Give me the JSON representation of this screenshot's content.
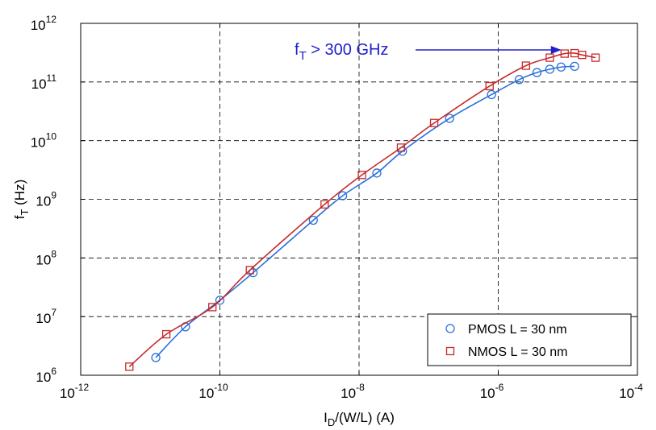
{
  "chart_data": {
    "type": "scatter",
    "title": "",
    "xlabel": {
      "main": "I",
      "sub": "D",
      "rest": "/(W/L) (A)"
    },
    "ylabel": {
      "main": "f",
      "sub": "T",
      "rest": " (Hz)"
    },
    "x_scale": "log",
    "y_scale": "log",
    "xlim": [
      1e-12,
      0.0001
    ],
    "ylim": [
      1000000.0,
      1000000000000.0
    ],
    "x_ticks": [
      {
        "base": "10",
        "exp": "-12",
        "value": 1e-12
      },
      {
        "base": "10",
        "exp": "-10",
        "value": 1e-10
      },
      {
        "base": "10",
        "exp": "-8",
        "value": 1e-08
      },
      {
        "base": "10",
        "exp": "-6",
        "value": 1e-06
      },
      {
        "base": "10",
        "exp": "-4",
        "value": 0.0001
      }
    ],
    "y_ticks": [
      {
        "base": "10",
        "exp": "6",
        "value": 1000000.0
      },
      {
        "base": "10",
        "exp": "7",
        "value": 10000000.0
      },
      {
        "base": "10",
        "exp": "8",
        "value": 100000000.0
      },
      {
        "base": "10",
        "exp": "9",
        "value": 1000000000.0
      },
      {
        "base": "10",
        "exp": "10",
        "value": 10000000000.0
      },
      {
        "base": "10",
        "exp": "11",
        "value": 100000000000.0
      },
      {
        "base": "10",
        "exp": "12",
        "value": 1000000000000.0
      }
    ],
    "grid": true,
    "legend_position": "bottom-right",
    "series": [
      {
        "name": "PMOS L = 30 nm",
        "marker": "circle",
        "color": "#2a6fdb",
        "points": [
          [
            1.2e-11,
            2000000.0
          ],
          [
            3.2e-11,
            6700000.0
          ],
          [
            1e-10,
            19000000.0
          ],
          [
            3e-10,
            56000000.0
          ],
          [
            2.2e-09,
            440000000.0
          ],
          [
            5.8e-09,
            1150000000.0
          ],
          [
            1.8e-08,
            2800000000.0
          ],
          [
            4.2e-08,
            6600000000.0
          ],
          [
            2e-07,
            24000000000.0
          ],
          [
            8e-07,
            61000000000.0
          ],
          [
            2e-06,
            110000000000.0
          ],
          [
            3.6e-06,
            145000000000.0
          ],
          [
            5.5e-06,
            165000000000.0
          ],
          [
            8e-06,
            180000000000.0
          ],
          [
            1.25e-05,
            185000000000.0
          ]
        ]
      },
      {
        "name": "NMOS L = 30 nm",
        "marker": "square",
        "color": "#c62a2a",
        "points": [
          [
            5e-12,
            1400000.0
          ],
          [
            1.7e-11,
            5000000.0
          ],
          [
            7.8e-11,
            14500000.0
          ],
          [
            2.7e-10,
            62000000.0
          ],
          [
            3.2e-09,
            820000000.0
          ],
          [
            1.1e-08,
            2600000000.0
          ],
          [
            4e-08,
            7600000000.0
          ],
          [
            1.2e-07,
            20000000000.0
          ],
          [
            7.5e-07,
            85000000000.0
          ],
          [
            2.5e-06,
            190000000000.0
          ],
          [
            5.5e-06,
            260000000000.0
          ],
          [
            9e-06,
            305000000000.0
          ],
          [
            1.25e-05,
            310000000000.0
          ],
          [
            1.6e-05,
            290000000000.0
          ],
          [
            2.5e-05,
            260000000000.0
          ]
        ]
      }
    ],
    "annotation": {
      "parts": [
        {
          "text": "f",
          "role": "main"
        },
        {
          "text": "T",
          "role": "sub"
        },
        {
          "text": " > 300 GHz",
          "role": "rest"
        }
      ],
      "color": "#2020cc",
      "arrow_to": [
        9e-06,
        310000000000.0
      ]
    }
  }
}
